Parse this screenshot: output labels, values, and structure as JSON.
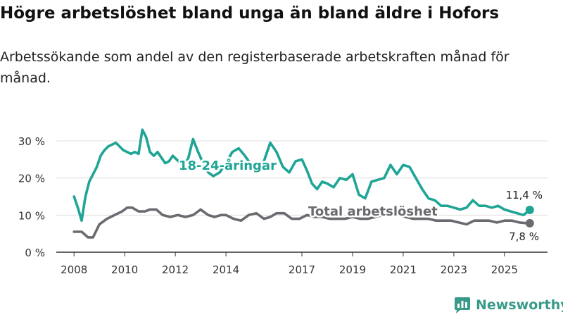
{
  "title": "Högre arbetslöshet bland unga än bland äldre i Hofors",
  "subtitle": "Arbetssökande som andel av den registerbaserade arbetskraften månad för månad.",
  "brand": "Newsworthy",
  "colors": {
    "youth": "#1fa595",
    "total": "#6b6a70",
    "grid": "#dcdcdc",
    "axis": "#333333",
    "brand": "#3a9a8a"
  },
  "chart_data": {
    "type": "line",
    "title": "Högre arbetslöshet bland unga än bland äldre i Hofors",
    "subtitle": "Arbetssökande som andel av den registerbaserade arbetskraften månad för månad.",
    "xlabel": "",
    "ylabel": "",
    "xlim": [
      2007.3,
      2026.7
    ],
    "ylim": [
      0,
      30
    ],
    "yticks": [
      0,
      10,
      20,
      30
    ],
    "ytick_labels": [
      "0 %",
      "10 %",
      "20 %",
      "30 %"
    ],
    "xticks": [
      2008,
      2010,
      2012,
      2014,
      2017,
      2019,
      2021,
      2023,
      2025
    ],
    "xtick_labels": [
      "2008",
      "2010",
      "2012",
      "2014",
      "2017",
      "2019",
      "2021",
      "2023",
      "2025"
    ],
    "grid": true,
    "series": [
      {
        "name": "18-24-åringar",
        "label": "18-24-åringar",
        "color": "#1fa595",
        "end_label": "11,4 %",
        "x": [
          2008.0,
          2008.15,
          2008.3,
          2008.45,
          2008.6,
          2008.75,
          2008.9,
          2009.05,
          2009.2,
          2009.35,
          2009.5,
          2009.65,
          2009.8,
          2009.95,
          2010.1,
          2010.25,
          2010.4,
          2010.55,
          2010.7,
          2010.85,
          2011.0,
          2011.15,
          2011.3,
          2011.45,
          2011.6,
          2011.75,
          2011.9,
          2012.05,
          2012.2,
          2012.35,
          2012.5,
          2012.7,
          2012.9,
          2013.1,
          2013.3,
          2013.5,
          2013.75,
          2014.0,
          2014.25,
          2014.5,
          2014.75,
          2015.0,
          2015.25,
          2015.5,
          2015.75,
          2016.0,
          2016.25,
          2016.5,
          2016.75,
          2017.0,
          2017.2,
          2017.4,
          2017.6,
          2017.8,
          2018.0,
          2018.25,
          2018.5,
          2018.75,
          2019.0,
          2019.25,
          2019.5,
          2019.75,
          2020.0,
          2020.25,
          2020.5,
          2020.75,
          2021.0,
          2021.25,
          2021.5,
          2021.75,
          2022.0,
          2022.25,
          2022.5,
          2022.75,
          2023.0,
          2023.25,
          2023.5,
          2023.75,
          2024.0,
          2024.25,
          2024.5,
          2024.75,
          2025.0,
          2025.25,
          2025.5,
          2025.75,
          2026.0
        ],
        "y": [
          15,
          12,
          8.5,
          15,
          19,
          21,
          23,
          26,
          27.5,
          28.5,
          29,
          29.5,
          28.5,
          27.5,
          27,
          26.5,
          27,
          26.5,
          33,
          31,
          27,
          26,
          27,
          25.5,
          24,
          24.5,
          26,
          25,
          24,
          24.5,
          25,
          30.5,
          27,
          24,
          21.5,
          20.5,
          21.5,
          24,
          27,
          28,
          26,
          23.5,
          21.5,
          24.5,
          29.5,
          27,
          23,
          21.5,
          24.5,
          25,
          22,
          18.5,
          17,
          19,
          18.5,
          17.5,
          20,
          19.5,
          21,
          15.5,
          14.5,
          19,
          19.5,
          20,
          23.5,
          21,
          23.5,
          23,
          20,
          17,
          14.5,
          14,
          12.5,
          12.5,
          12,
          11.5,
          12,
          14,
          12.5,
          12.5,
          12,
          12.5,
          11.5,
          11,
          10.5,
          10,
          11.4
        ]
      },
      {
        "name": "Total arbetslöshet",
        "label": "Total arbetslöshet",
        "color": "#6b6a70",
        "end_label": "7,8 %",
        "x": [
          2008.0,
          2008.3,
          2008.55,
          2008.75,
          2009.0,
          2009.3,
          2009.6,
          2009.9,
          2010.1,
          2010.3,
          2010.55,
          2010.8,
          2011.0,
          2011.25,
          2011.5,
          2011.8,
          2012.1,
          2012.4,
          2012.7,
          2013.0,
          2013.3,
          2013.55,
          2013.8,
          2014.0,
          2014.3,
          2014.6,
          2014.9,
          2015.2,
          2015.5,
          2015.75,
          2016.0,
          2016.3,
          2016.6,
          2016.9,
          2017.2,
          2017.5,
          2017.8,
          2018.1,
          2018.4,
          2018.7,
          2019.0,
          2019.3,
          2019.6,
          2019.9,
          2020.2,
          2020.5,
          2020.8,
          2021.1,
          2021.4,
          2021.7,
          2022.0,
          2022.3,
          2022.6,
          2022.9,
          2023.2,
          2023.5,
          2023.8,
          2024.1,
          2024.4,
          2024.7,
          2025.0,
          2025.3,
          2025.6,
          2025.9,
          2026.0
        ],
        "y": [
          5.5,
          5.5,
          4,
          4,
          7.5,
          9,
          10,
          11,
          12,
          12,
          11,
          11,
          11.5,
          11.5,
          10,
          9.5,
          10,
          9.5,
          10,
          11.5,
          10,
          9.5,
          10,
          10,
          9,
          8.5,
          10,
          10.5,
          9,
          9.5,
          10.5,
          10.5,
          9,
          9,
          10,
          9.5,
          9.5,
          9,
          9,
          9,
          9.5,
          9,
          9,
          9.5,
          10,
          10,
          10,
          9.5,
          9,
          9,
          9,
          8.5,
          8.5,
          8.5,
          8,
          7.5,
          8.5,
          8.5,
          8.5,
          8,
          8.5,
          8.5,
          8,
          7.8,
          7.8
        ]
      }
    ]
  }
}
